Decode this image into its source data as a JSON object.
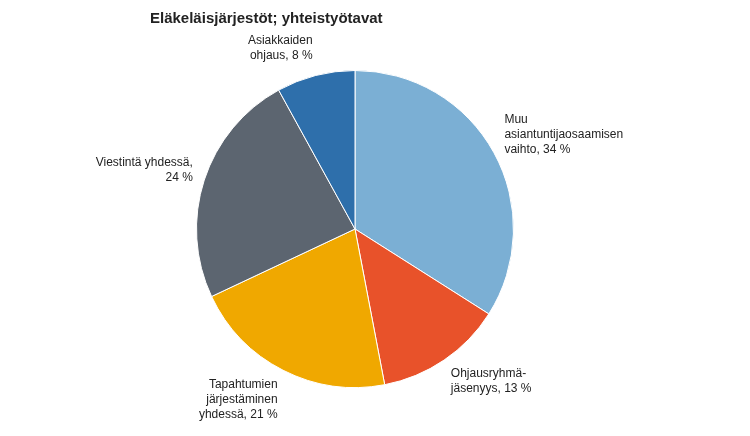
{
  "chart_data": {
    "type": "pie",
    "title": "Eläkeläisjärjestöt; yhteistyötavat",
    "categories": [
      "Muu\nasiantuntijaosaamisen\nvaihto, 34 %",
      "Ohjausryhmä-\njäsenyys, 13 %",
      "Tapahtumien\njärjestäminen\nyhdessä, 21 %",
      "Viestintä yhdessä,\n24 %",
      "Asiakkaiden\nohjaus, 8 %"
    ],
    "values": [
      34,
      13,
      21,
      24,
      8
    ],
    "colors": [
      "#7BAFD4",
      "#E8522A",
      "#F0A800",
      "#5C6570",
      "#2E6FAB"
    ]
  }
}
